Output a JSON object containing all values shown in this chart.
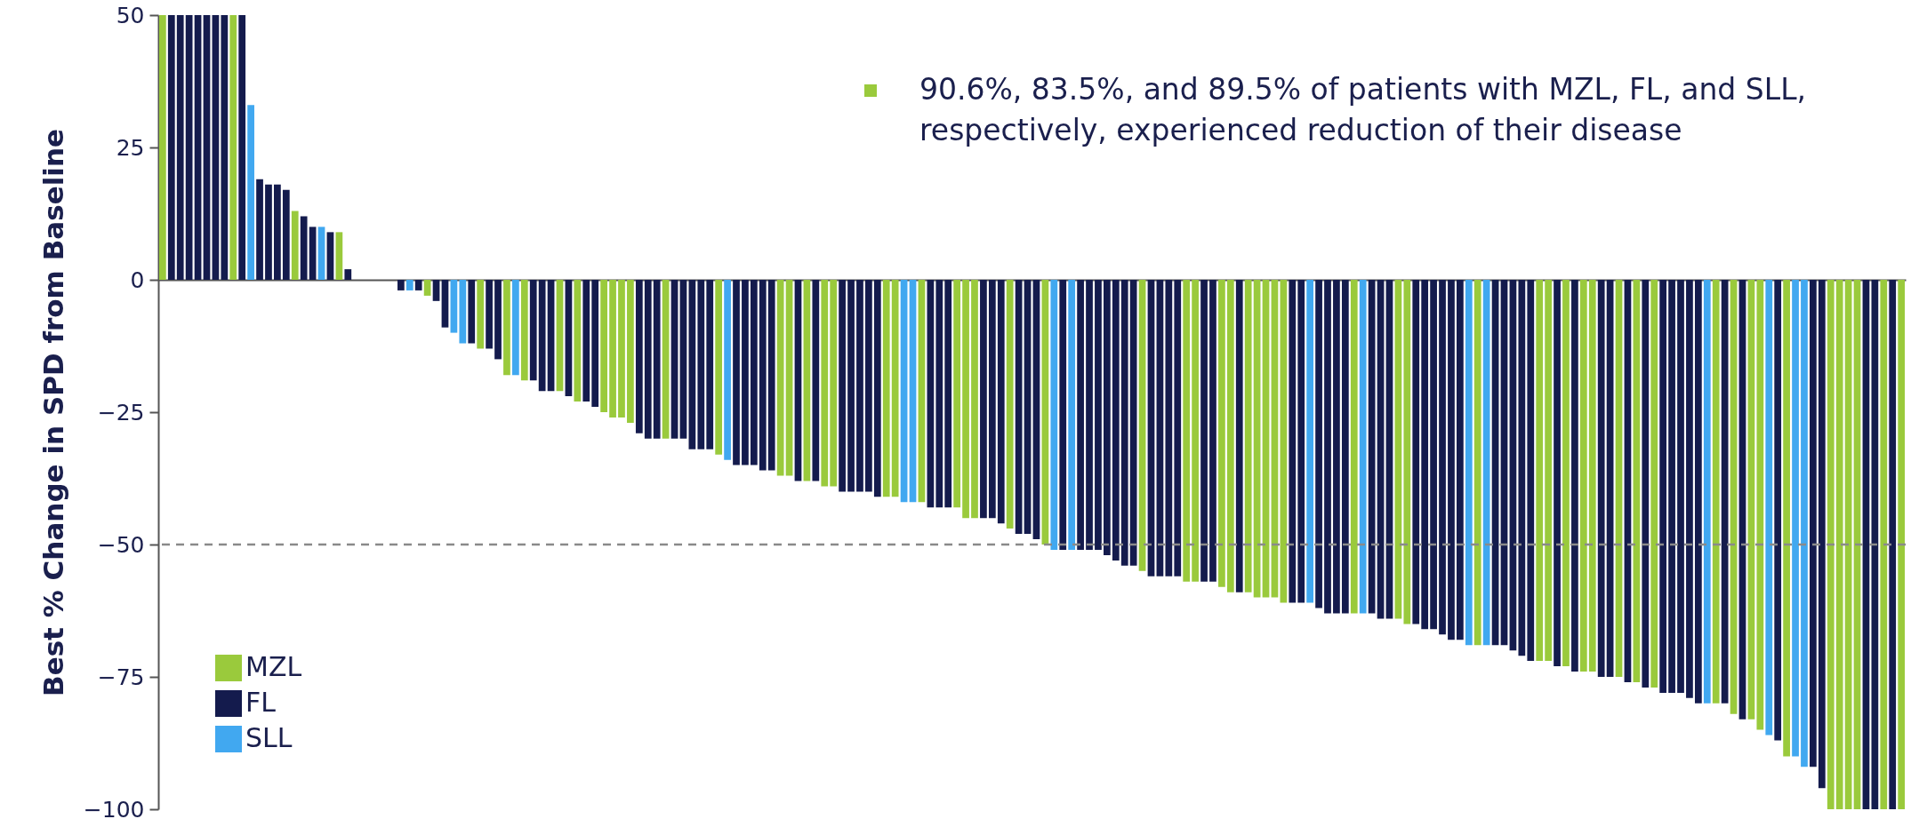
{
  "chart_data": {
    "type": "bar",
    "ylabel": "Best % Change in SPD from Baseline",
    "annotations": [
      "90.6%, 83.5%, and 89.5% of patients with MZL, FL, and SLL, respectively, experienced reduction of their disease"
    ],
    "categories": [
      null,
      null,
      null,
      null,
      null,
      null,
      null,
      null,
      null,
      null,
      null,
      null,
      null,
      null,
      null,
      null,
      null,
      null,
      null,
      null,
      null,
      null,
      null,
      null,
      null,
      null,
      null,
      null,
      null,
      null,
      null,
      null,
      null,
      null,
      null,
      null,
      null,
      null,
      null,
      null,
      null,
      null,
      null,
      null,
      null,
      null,
      null,
      null,
      null,
      null,
      null,
      null,
      null,
      null,
      null,
      null,
      null,
      null,
      null,
      null,
      null,
      null,
      null,
      null,
      null,
      null,
      null,
      null,
      null,
      null,
      null,
      null,
      null,
      null,
      null,
      null,
      null,
      null,
      null,
      null,
      null,
      null,
      null,
      null,
      null,
      null,
      null,
      null,
      null,
      null,
      null,
      null,
      null,
      null,
      null,
      null,
      null,
      null,
      null,
      null,
      null,
      null,
      null,
      null,
      null,
      null,
      null,
      null,
      null,
      null,
      null,
      null,
      null,
      null,
      null,
      null,
      null,
      null,
      null,
      null,
      null,
      null,
      null,
      null,
      null,
      null,
      null,
      null,
      null,
      null,
      null,
      null,
      null,
      null,
      null,
      null,
      null,
      null,
      null,
      null,
      null,
      null,
      null,
      null,
      null,
      null,
      null,
      null,
      null,
      null,
      null,
      null,
      null,
      null,
      null,
      null,
      null,
      null,
      null,
      null,
      null,
      null,
      null,
      null,
      null,
      null,
      null,
      null,
      null,
      null,
      null,
      null,
      null,
      null,
      null,
      null,
      null,
      null,
      null,
      null,
      null,
      null,
      null,
      null,
      null,
      null,
      null,
      null,
      null,
      null,
      null,
      null,
      null,
      null,
      null,
      null,
      null,
      null
    ],
    "series": [
      {
        "name": "MZL",
        "color": "#9aca3c",
        "values": [
          50,
          null,
          null,
          null,
          null,
          null,
          null,
          null,
          50,
          null,
          null,
          null,
          null,
          null,
          null,
          13,
          null,
          null,
          null,
          null,
          9,
          null,
          null,
          null,
          null,
          null,
          null,
          null,
          null,
          null,
          -3,
          null,
          null,
          null,
          null,
          null,
          -13,
          null,
          null,
          -18,
          null,
          -19,
          null,
          null,
          null,
          -21,
          null,
          -23,
          null,
          null,
          -25,
          -26,
          -26,
          -27,
          null,
          null,
          null,
          -30,
          null,
          null,
          null,
          null,
          null,
          -33,
          null,
          null,
          null,
          null,
          null,
          null,
          -37,
          -37,
          null,
          -38,
          null,
          -39,
          -39,
          null,
          null,
          null,
          null,
          null,
          -41,
          -41,
          null,
          null,
          -42,
          null,
          null,
          null,
          -43,
          -45,
          -45,
          null,
          null,
          null,
          -47,
          null,
          null,
          null,
          -50,
          null,
          null,
          null,
          null,
          null,
          null,
          null,
          null,
          null,
          null,
          -55,
          null,
          null,
          null,
          null,
          -57,
          -57,
          null,
          null,
          -58,
          -59,
          null,
          -59,
          -60,
          -60,
          -60,
          -61,
          null,
          null,
          null,
          null,
          null,
          null,
          null,
          -63,
          null,
          null,
          null,
          null,
          -64,
          -65,
          null,
          null,
          null,
          null,
          null,
          null,
          null,
          -69,
          null,
          null,
          null,
          null,
          null,
          null,
          -72,
          -72,
          null,
          -73,
          null,
          -74,
          -74,
          null,
          null,
          -75,
          null,
          -76,
          null,
          -77,
          null,
          null,
          null,
          null,
          null,
          null,
          -80,
          null,
          -82,
          null,
          -83,
          -85,
          null,
          null,
          -90,
          null,
          null,
          null,
          null,
          -100,
          -100,
          -100,
          -100,
          null,
          null,
          -100,
          null,
          -100
        ]
      },
      {
        "name": "FL",
        "color": "#141b4d",
        "values": [
          null,
          50,
          50,
          50,
          50,
          50,
          50,
          50,
          null,
          50,
          null,
          19,
          18,
          18,
          17,
          null,
          12,
          10,
          null,
          9,
          null,
          2,
          null,
          null,
          null,
          null,
          null,
          -2,
          null,
          -2,
          null,
          -4,
          -9,
          null,
          null,
          -12,
          null,
          -13,
          -15,
          null,
          null,
          null,
          -19,
          -21,
          -21,
          null,
          -22,
          null,
          -23,
          -24,
          null,
          null,
          null,
          null,
          -29,
          -30,
          -30,
          null,
          -30,
          -30,
          -32,
          -32,
          -32,
          null,
          null,
          -35,
          -35,
          -35,
          -36,
          -36,
          null,
          null,
          -38,
          null,
          -38,
          null,
          null,
          -40,
          -40,
          -40,
          -40,
          -41,
          null,
          null,
          null,
          null,
          null,
          -43,
          -43,
          -43,
          null,
          null,
          null,
          -45,
          -45,
          -46,
          null,
          -48,
          -48,
          -49,
          null,
          null,
          -51,
          null,
          -51,
          -51,
          -51,
          -52,
          -53,
          -54,
          -54,
          null,
          -56,
          -56,
          -56,
          -56,
          null,
          null,
          -57,
          -57,
          null,
          null,
          -59,
          null,
          null,
          null,
          null,
          null,
          -61,
          -61,
          null,
          -62,
          -63,
          -63,
          -63,
          null,
          null,
          -63,
          -64,
          -64,
          null,
          null,
          -65,
          -66,
          -66,
          -67,
          -68,
          -68,
          null,
          null,
          null,
          -69,
          -69,
          -70,
          -71,
          -72,
          null,
          null,
          -73,
          null,
          -74,
          null,
          null,
          -75,
          -75,
          null,
          -76,
          null,
          -77,
          null,
          -78,
          -78,
          -78,
          -79,
          -80,
          null,
          null,
          -80,
          null,
          -83,
          null,
          null,
          null,
          -87,
          null,
          null,
          null,
          -92,
          -96,
          null,
          null,
          null,
          null,
          -100,
          -100,
          null,
          -100,
          null
        ]
      },
      {
        "name": "SLL",
        "color": "#41a8f0",
        "values": [
          null,
          null,
          null,
          null,
          null,
          null,
          null,
          null,
          null,
          null,
          33,
          null,
          null,
          null,
          null,
          null,
          null,
          null,
          10,
          null,
          null,
          null,
          null,
          null,
          null,
          null,
          null,
          null,
          -2,
          null,
          null,
          null,
          null,
          -10,
          -12,
          null,
          null,
          null,
          null,
          null,
          -18,
          null,
          null,
          null,
          null,
          null,
          null,
          null,
          null,
          null,
          null,
          null,
          null,
          null,
          null,
          null,
          null,
          null,
          null,
          null,
          null,
          null,
          null,
          null,
          -34,
          null,
          null,
          null,
          null,
          null,
          null,
          null,
          null,
          null,
          null,
          null,
          null,
          null,
          null,
          null,
          null,
          null,
          null,
          null,
          -42,
          -42,
          null,
          null,
          null,
          null,
          null,
          null,
          null,
          null,
          null,
          null,
          null,
          null,
          null,
          null,
          null,
          -51,
          null,
          -51,
          null,
          null,
          null,
          null,
          null,
          null,
          null,
          null,
          null,
          null,
          null,
          null,
          null,
          null,
          null,
          null,
          null,
          null,
          null,
          null,
          null,
          null,
          null,
          null,
          null,
          null,
          -61,
          null,
          null,
          null,
          null,
          null,
          -63,
          null,
          null,
          null,
          null,
          null,
          null,
          null,
          null,
          null,
          null,
          null,
          -69,
          null,
          -69,
          null,
          null,
          null,
          null,
          null,
          null,
          null,
          null,
          null,
          null,
          null,
          null,
          null,
          null,
          null,
          null,
          null,
          null,
          null,
          null,
          null,
          null,
          null,
          null,
          -80,
          null,
          null,
          null,
          null,
          null,
          null,
          -86,
          null,
          null,
          -90,
          -92,
          null,
          null,
          null,
          null,
          null,
          null,
          null,
          null,
          null,
          null,
          null
        ]
      }
    ],
    "ylim": [
      -100,
      50
    ],
    "yticks": [
      -100,
      -75,
      -50,
      -25,
      0,
      25,
      50
    ],
    "grid": false,
    "legend": "bottom left",
    "ref_lines": [
      {
        "axis": "y",
        "value": -50,
        "color": "#8a8a8a",
        "line_style": "dashed"
      }
    ]
  }
}
